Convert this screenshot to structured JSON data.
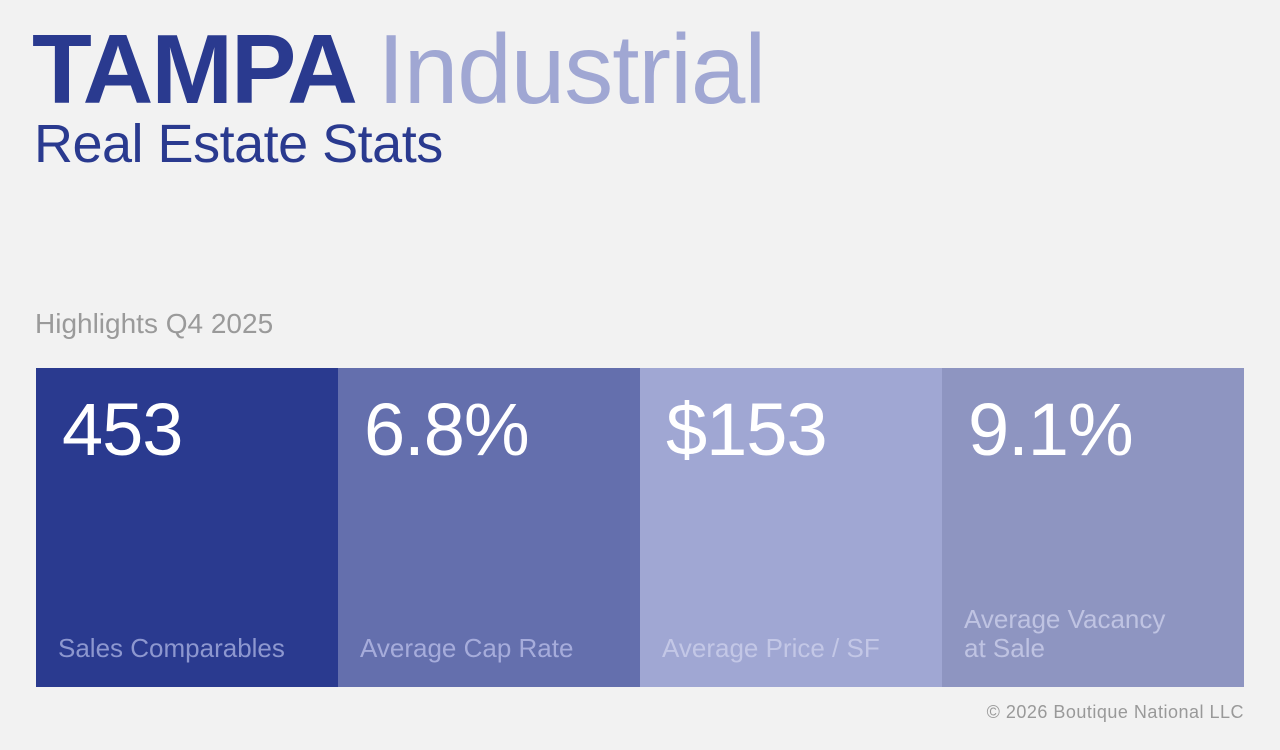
{
  "header": {
    "city": "TAMPA",
    "sector": "Industrial",
    "subtitle": "Real Estate Stats"
  },
  "highlights_label": "Highlights Q4 2025",
  "cards": [
    {
      "value": "453",
      "label": "Sales Comparables",
      "bg": "#2a3a8f",
      "label_color": "#8d97cf"
    },
    {
      "value": "6.8%",
      "label": "Average Cap Rate",
      "bg": "#646fad",
      "label_color": "#a6acdb"
    },
    {
      "value": "$153",
      "label": "Average Price / SF",
      "bg": "#a0a7d3",
      "label_color": "#c3c7e6"
    },
    {
      "value": "9.1%",
      "label": "Average Vacancy at Sale",
      "bg": "#8e95c1",
      "label_color": "#bfc3e2"
    }
  ],
  "footer": "© 2026 Boutique National LLC"
}
